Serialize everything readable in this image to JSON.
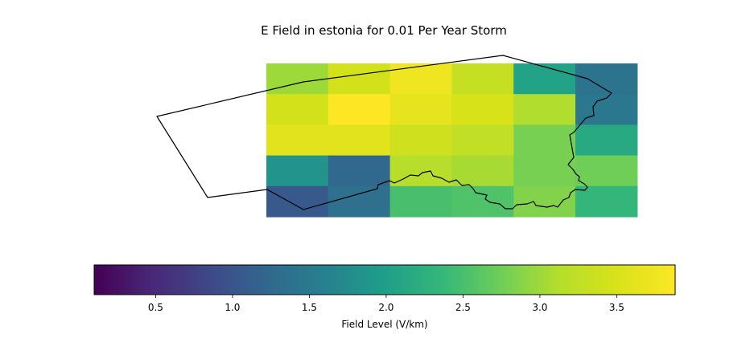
{
  "chart_data": {
    "type": "heatmap",
    "title": "E Field in estonia for 0.01 Per Year Storm",
    "colorbar": {
      "label": "Field Level (V/km)",
      "range": [
        0.1,
        3.88
      ],
      "ticks": [
        0.5,
        1.0,
        1.5,
        2.0,
        2.5,
        3.0,
        3.5
      ],
      "tick_labels": [
        "0.5",
        "1.0",
        "1.5",
        "2.0",
        "2.5",
        "3.0",
        "3.5"
      ],
      "colormap": "viridis",
      "orientation": "horizontal"
    },
    "grid": {
      "rows": 5,
      "cols": 6,
      "values": [
        [
          3.0,
          3.45,
          3.75,
          3.3,
          2.05,
          1.4
        ],
        [
          3.45,
          3.88,
          3.65,
          3.5,
          3.1,
          1.45
        ],
        [
          3.6,
          3.6,
          3.4,
          3.25,
          2.8,
          2.15
        ],
        [
          1.85,
          1.25,
          3.15,
          3.05,
          2.8,
          2.75
        ],
        [
          1.05,
          1.35,
          2.5,
          2.55,
          2.85,
          2.35
        ]
      ]
    },
    "outline_color": "#000000"
  }
}
